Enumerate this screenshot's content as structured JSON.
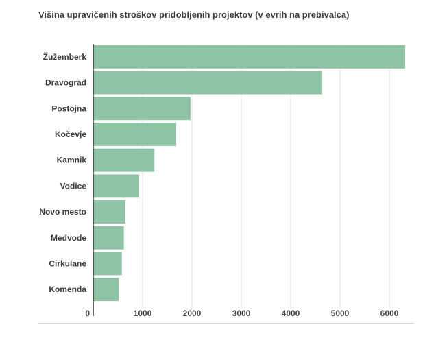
{
  "chart_data": {
    "type": "bar",
    "orientation": "horizontal",
    "title": "Višina upravičenih stroškov pridobljenih projektov (v evrih na prebivalca)",
    "xlabel": "",
    "ylabel": "",
    "categories": [
      "Žužemberk",
      "Dravograd",
      "Postojna",
      "Kočevje",
      "Kamnik",
      "Vodice",
      "Novo mesto",
      "Medvode",
      "Cirkulane",
      "Komenda"
    ],
    "values": [
      6320,
      4640,
      1970,
      1680,
      1240,
      930,
      650,
      620,
      580,
      520
    ],
    "xlim": [
      0,
      6400
    ],
    "xticks": [
      0,
      1000,
      2000,
      3000,
      4000,
      5000,
      6000
    ],
    "grid": true,
    "legend": "none",
    "bar_color": "#8ec3a5"
  }
}
